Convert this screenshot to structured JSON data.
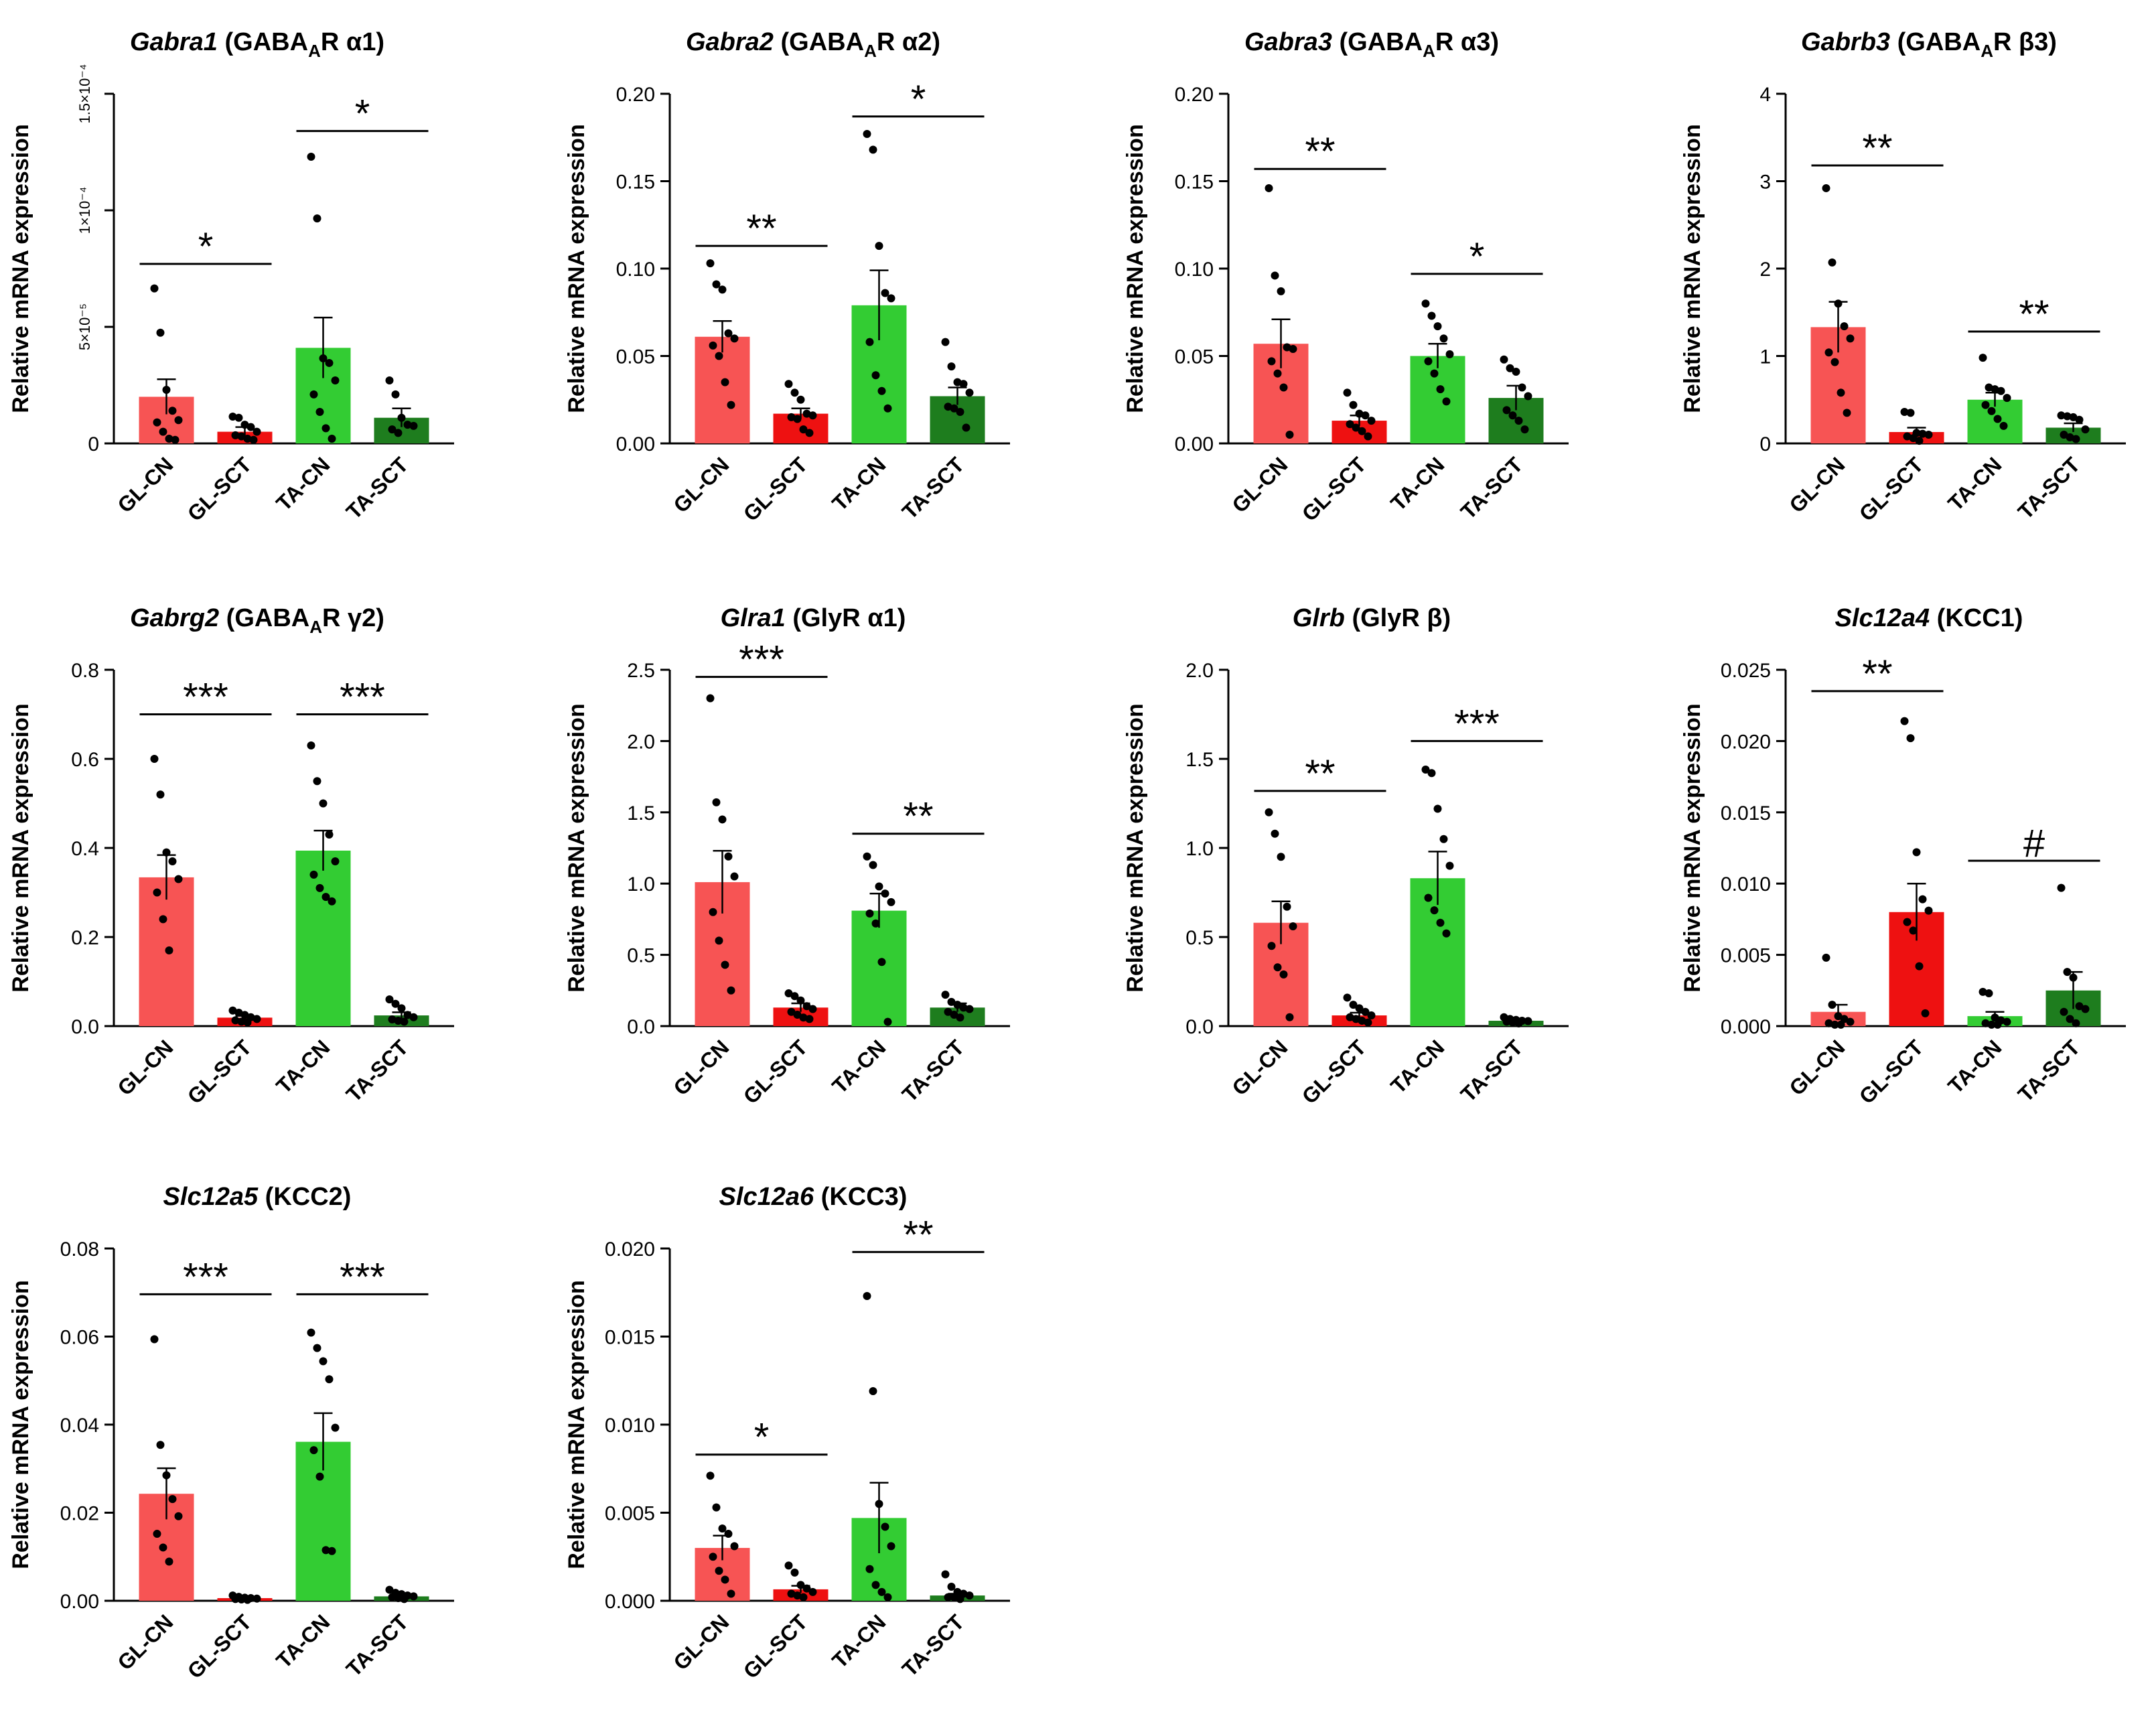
{
  "colors": {
    "gl_cn": "#f75454",
    "gl_sct": "#ee1111",
    "ta_cn": "#33cc33",
    "ta_sct": "#1e7d1e",
    "axis": "#000000",
    "dot": "#000000"
  },
  "chart_data": [
    {
      "type": "bar",
      "title_gene": "Gabra1",
      "title_rest": " (GABA",
      "title_sub": "A",
      "title_tail": "R α1)",
      "ylabel": "Relative mRNA expression",
      "categories": [
        "GL-CN",
        "GL-SCT",
        "TA-CN",
        "TA-SCT"
      ],
      "values": [
        2e-05,
        5e-06,
        4.1e-05,
        1.1e-05
      ],
      "sem": [
        7.5e-06,
        2e-06,
        1.3e-05,
        4e-06
      ],
      "points": [
        [
          6.65e-05,
          4.75e-05,
          2.3e-05,
          1.4e-05,
          1e-05,
          9e-06,
          5e-06,
          2e-06,
          1.5e-06
        ],
        [
          1.15e-05,
          1.1e-05,
          8e-06,
          7e-06,
          5e-06,
          3.5e-06,
          3e-06,
          2e-06,
          1.5e-06
        ],
        [
          0.000123,
          9.65e-05,
          3.65e-05,
          3.45e-05,
          2.7e-05,
          2.1e-05,
          1.35e-05,
          6.5e-06,
          2e-06
        ],
        [
          2.7e-05,
          2.1e-05,
          1.1e-05,
          8e-06,
          7.5e-06,
          6e-06,
          4.5e-06
        ]
      ],
      "yticks": [
        "0",
        "5×10⁻⁵",
        "1×10⁻⁴",
        "1.5×10⁻⁴"
      ],
      "ytick_values": [
        0,
        5e-05,
        0.0001,
        0.00015
      ],
      "ylim": [
        0,
        0.00015
      ],
      "significance": [
        {
          "from": 0,
          "to": 1,
          "label": "*",
          "y": 7.7e-05
        },
        {
          "from": 2,
          "to": 3,
          "label": "*",
          "y": 0.000134
        }
      ]
    },
    {
      "type": "bar",
      "title_gene": "Gabra2",
      "title_rest": " (GABA",
      "title_sub": "A",
      "title_tail": "R α2)",
      "ylabel": "Relative mRNA expression",
      "categories": [
        "GL-CN",
        "GL-SCT",
        "TA-CN",
        "TA-SCT"
      ],
      "values": [
        0.061,
        0.017,
        0.079,
        0.027
      ],
      "sem": [
        0.009,
        0.003,
        0.02,
        0.005
      ],
      "points": [
        [
          0.103,
          0.091,
          0.088,
          0.063,
          0.06,
          0.056,
          0.05,
          0.035,
          0.022
        ],
        [
          0.034,
          0.029,
          0.025,
          0.017,
          0.016,
          0.015,
          0.014,
          0.008,
          0.006
        ],
        [
          0.177,
          0.168,
          0.113,
          0.086,
          0.083,
          0.058,
          0.039,
          0.03,
          0.02
        ],
        [
          0.058,
          0.044,
          0.035,
          0.034,
          0.029,
          0.021,
          0.02,
          0.018,
          0.009
        ]
      ],
      "yticks": [
        "0.00",
        "0.05",
        "0.10",
        "0.15",
        "0.20"
      ],
      "ytick_values": [
        0,
        0.05,
        0.1,
        0.15,
        0.2
      ],
      "ylim": [
        0,
        0.2
      ],
      "significance": [
        {
          "from": 0,
          "to": 1,
          "label": "**",
          "y": 0.113
        },
        {
          "from": 2,
          "to": 3,
          "label": "*",
          "y": 0.187
        }
      ]
    },
    {
      "type": "bar",
      "title_gene": "Gabra3",
      "title_rest": " (GABA",
      "title_sub": "A",
      "title_tail": "R α3)",
      "ylabel": "Relative mRNA expression",
      "categories": [
        "GL-CN",
        "GL-SCT",
        "TA-CN",
        "TA-SCT"
      ],
      "values": [
        0.057,
        0.013,
        0.05,
        0.026
      ],
      "sem": [
        0.014,
        0.003,
        0.007,
        0.007
      ],
      "points": [
        [
          0.146,
          0.096,
          0.087,
          0.055,
          0.054,
          0.047,
          0.04,
          0.032,
          0.005
        ],
        [
          0.029,
          0.022,
          0.017,
          0.016,
          0.013,
          0.011,
          0.009,
          0.007,
          0.004
        ],
        [
          0.08,
          0.073,
          0.067,
          0.06,
          0.051,
          0.047,
          0.04,
          0.031,
          0.024
        ],
        [
          0.048,
          0.043,
          0.041,
          0.032,
          0.027,
          0.019,
          0.016,
          0.013,
          0.008
        ]
      ],
      "yticks": [
        "0.00",
        "0.05",
        "0.10",
        "0.15",
        "0.20"
      ],
      "ytick_values": [
        0,
        0.05,
        0.1,
        0.15,
        0.2
      ],
      "ylim": [
        0,
        0.2
      ],
      "significance": [
        {
          "from": 0,
          "to": 1,
          "label": "**",
          "y": 0.157
        },
        {
          "from": 2,
          "to": 3,
          "label": "*",
          "y": 0.097
        }
      ]
    },
    {
      "type": "bar",
      "title_gene": "Gabrb3",
      "title_rest": " (GABA",
      "title_sub": "A",
      "title_tail": "R β3)",
      "ylabel": "Relative mRNA expression",
      "categories": [
        "GL-CN",
        "GL-SCT",
        "TA-CN",
        "TA-SCT"
      ],
      "values": [
        1.33,
        0.13,
        0.5,
        0.18
      ],
      "sem": [
        0.29,
        0.05,
        0.08,
        0.05
      ],
      "points": [
        [
          2.92,
          2.07,
          1.6,
          1.34,
          1.2,
          1.04,
          0.93,
          0.58,
          0.35
        ],
        [
          0.36,
          0.35,
          0.12,
          0.11,
          0.1,
          0.08,
          0.06,
          0.03
        ],
        [
          0.98,
          0.64,
          0.62,
          0.6,
          0.52,
          0.44,
          0.37,
          0.28,
          0.2
        ],
        [
          0.32,
          0.31,
          0.3,
          0.27,
          0.16,
          0.1,
          0.07,
          0.05
        ]
      ],
      "yticks": [
        "0",
        "1",
        "2",
        "3",
        "4"
      ],
      "ytick_values": [
        0,
        1,
        2,
        3,
        4
      ],
      "ylim": [
        0,
        4
      ],
      "significance": [
        {
          "from": 0,
          "to": 1,
          "label": "**",
          "y": 3.18
        },
        {
          "from": 2,
          "to": 3,
          "label": "**",
          "y": 1.28
        }
      ]
    },
    {
      "type": "bar",
      "title_gene": "Gabrg2",
      "title_rest": " (GABA",
      "title_sub": "A",
      "title_tail": "R γ2)",
      "ylabel": "Relative mRNA expression",
      "categories": [
        "GL-CN",
        "GL-SCT",
        "TA-CN",
        "TA-SCT"
      ],
      "values": [
        0.334,
        0.019,
        0.394,
        0.024
      ],
      "sem": [
        0.05,
        0.004,
        0.045,
        0.007
      ],
      "points": [
        [
          0.6,
          0.52,
          0.39,
          0.37,
          0.33,
          0.3,
          0.24,
          0.17
        ],
        [
          0.035,
          0.03,
          0.025,
          0.02,
          0.016,
          0.013,
          0.01,
          0.008
        ],
        [
          0.63,
          0.55,
          0.5,
          0.43,
          0.37,
          0.34,
          0.31,
          0.29,
          0.28
        ],
        [
          0.06,
          0.05,
          0.04,
          0.025,
          0.02,
          0.015,
          0.012,
          0.01
        ]
      ],
      "yticks": [
        "0.0",
        "0.2",
        "0.4",
        "0.6",
        "0.8"
      ],
      "ytick_values": [
        0,
        0.2,
        0.4,
        0.6,
        0.8
      ],
      "ylim": [
        0,
        0.8
      ],
      "significance": [
        {
          "from": 0,
          "to": 1,
          "label": "***",
          "y": 0.7
        },
        {
          "from": 2,
          "to": 3,
          "label": "***",
          "y": 0.7
        }
      ]
    },
    {
      "type": "bar",
      "title_gene": "Glra1",
      "title_rest": " (GlyR α1)",
      "title_sub": "",
      "title_tail": "",
      "ylabel": "Relative mRNA expression",
      "categories": [
        "GL-CN",
        "GL-SCT",
        "TA-CN",
        "TA-SCT"
      ],
      "values": [
        1.01,
        0.13,
        0.81,
        0.13
      ],
      "sem": [
        0.22,
        0.03,
        0.12,
        0.03
      ],
      "points": [
        [
          2.3,
          1.57,
          1.45,
          1.19,
          1.05,
          0.8,
          0.6,
          0.43,
          0.25
        ],
        [
          0.23,
          0.21,
          0.18,
          0.14,
          0.12,
          0.1,
          0.08,
          0.06,
          0.05
        ],
        [
          1.19,
          1.13,
          0.98,
          0.93,
          0.87,
          0.79,
          0.72,
          0.45,
          0.03
        ],
        [
          0.22,
          0.17,
          0.15,
          0.13,
          0.12,
          0.1,
          0.08,
          0.06
        ]
      ],
      "yticks": [
        "0.0",
        "0.5",
        "1.0",
        "1.5",
        "2.0",
        "2.5"
      ],
      "ytick_values": [
        0,
        0.5,
        1,
        1.5,
        2,
        2.5
      ],
      "ylim": [
        0,
        2.5
      ],
      "significance": [
        {
          "from": 0,
          "to": 1,
          "label": "***",
          "y": 2.45
        },
        {
          "from": 2,
          "to": 3,
          "label": "**",
          "y": 1.35
        }
      ]
    },
    {
      "type": "bar",
      "title_gene": "Glrb",
      "title_rest": " (GlyR  β)",
      "title_sub": "",
      "title_tail": "",
      "ylabel": "Relative mRNA expression",
      "categories": [
        "GL-CN",
        "GL-SCT",
        "TA-CN",
        "TA-SCT"
      ],
      "values": [
        0.58,
        0.06,
        0.83,
        0.03
      ],
      "sem": [
        0.12,
        0.015,
        0.15,
        0.005
      ],
      "points": [
        [
          1.2,
          1.08,
          0.95,
          0.67,
          0.56,
          0.45,
          0.33,
          0.29,
          0.05
        ],
        [
          0.16,
          0.12,
          0.1,
          0.08,
          0.06,
          0.05,
          0.04,
          0.03,
          0.02
        ],
        [
          1.44,
          1.42,
          1.22,
          1.05,
          0.9,
          0.72,
          0.65,
          0.58,
          0.52
        ],
        [
          0.05,
          0.04,
          0.035,
          0.03,
          0.028,
          0.025,
          0.02,
          0.015
        ]
      ],
      "yticks": [
        "0.0",
        "0.5",
        "1.0",
        "1.5",
        "2.0"
      ],
      "ytick_values": [
        0,
        0.5,
        1,
        1.5,
        2
      ],
      "ylim": [
        0,
        2
      ],
      "significance": [
        {
          "from": 0,
          "to": 1,
          "label": "**",
          "y": 1.32
        },
        {
          "from": 2,
          "to": 3,
          "label": "***",
          "y": 1.6
        }
      ]
    },
    {
      "type": "bar",
      "title_gene": "Slc12a4",
      "title_rest": " (KCC1)",
      "title_sub": "",
      "title_tail": "",
      "ylabel": "Relative mRNA expression",
      "categories": [
        "GL-CN",
        "GL-SCT",
        "TA-CN",
        "TA-SCT"
      ],
      "values": [
        0.001,
        0.008,
        0.0007,
        0.0025
      ],
      "sem": [
        0.0005,
        0.002,
        0.0003,
        0.0013
      ],
      "points": [
        [
          0.0048,
          0.0015,
          0.0007,
          0.0005,
          0.0003,
          0.0002,
          0.0001,
          0.0001
        ],
        [
          0.0214,
          0.0202,
          0.0122,
          0.0089,
          0.0081,
          0.0073,
          0.0067,
          0.0042,
          0.0009
        ],
        [
          0.0024,
          0.0023,
          0.0006,
          0.0004,
          0.0003,
          0.0002,
          0.0001,
          0.0001
        ],
        [
          0.0097,
          0.0038,
          0.0034,
          0.0014,
          0.0012,
          0.001,
          0.0005,
          0.0002
        ]
      ],
      "yticks": [
        "0.000",
        "0.005",
        "0.010",
        "0.015",
        "0.020",
        "0.025"
      ],
      "ytick_values": [
        0,
        0.005,
        0.01,
        0.015,
        0.02,
        0.025
      ],
      "ylim": [
        0,
        0.025
      ],
      "significance": [
        {
          "from": 0,
          "to": 1,
          "label": "**",
          "y": 0.0235
        },
        {
          "from": 2,
          "to": 3,
          "label": "#",
          "y": 0.0116
        }
      ]
    },
    {
      "type": "bar",
      "title_gene": "Slc12a5",
      "title_rest": " (KCC2)",
      "title_sub": "",
      "title_tail": "",
      "ylabel": "Relative mRNA expression",
      "categories": [
        "GL-CN",
        "GL-SCT",
        "TA-CN",
        "TA-SCT"
      ],
      "values": [
        0.0243,
        0.0006,
        0.0361,
        0.001
      ],
      "sem": [
        0.0058,
        0.0002,
        0.0065,
        0.0003
      ],
      "points": [
        [
          0.0594,
          0.0354,
          0.0285,
          0.0231,
          0.0192,
          0.0152,
          0.0121,
          0.0089
        ],
        [
          0.0012,
          0.0009,
          0.0007,
          0.0006,
          0.0005,
          0.0004,
          0.0003,
          0.0002
        ],
        [
          0.0609,
          0.0574,
          0.0544,
          0.0503,
          0.0393,
          0.0342,
          0.0282,
          0.0115,
          0.0113
        ],
        [
          0.0025,
          0.0018,
          0.0015,
          0.0012,
          0.001,
          0.0008,
          0.0006,
          0.0004
        ]
      ],
      "yticks": [
        "0.00",
        "0.02",
        "0.04",
        "0.06",
        "0.08"
      ],
      "ytick_values": [
        0,
        0.02,
        0.04,
        0.06,
        0.08
      ],
      "ylim": [
        0,
        0.08
      ],
      "significance": [
        {
          "from": 0,
          "to": 1,
          "label": "***",
          "y": 0.0696
        },
        {
          "from": 2,
          "to": 3,
          "label": "***",
          "y": 0.0696
        }
      ]
    },
    {
      "type": "bar",
      "title_gene": "Slc12a6",
      "title_rest": " (KCC3)",
      "title_sub": "",
      "title_tail": "",
      "ylabel": "Relative mRNA expression",
      "categories": [
        "GL-CN",
        "GL-SCT",
        "TA-CN",
        "TA-SCT"
      ],
      "values": [
        0.003,
        0.00065,
        0.0047,
        0.0003
      ],
      "sem": [
        0.0007,
        0.0002,
        0.002,
        0.0001
      ],
      "points": [
        [
          0.0071,
          0.0053,
          0.0041,
          0.0038,
          0.0031,
          0.0025,
          0.0017,
          0.0012,
          0.0004
        ],
        [
          0.002,
          0.0016,
          0.0009,
          0.0007,
          0.0005,
          0.0004,
          0.0003,
          0.0002
        ],
        [
          0.0173,
          0.0119,
          0.0055,
          0.0042,
          0.0031,
          0.0018,
          0.0009,
          0.0005,
          0.0002
        ],
        [
          0.0015,
          0.0008,
          0.0005,
          0.0004,
          0.0003,
          0.0002,
          0.0002,
          0.0001
        ]
      ],
      "yticks": [
        "0.000",
        "0.005",
        "0.010",
        "0.015",
        "0.020"
      ],
      "ytick_values": [
        0,
        0.005,
        0.01,
        0.015,
        0.02
      ],
      "ylim": [
        0,
        0.02
      ],
      "significance": [
        {
          "from": 0,
          "to": 1,
          "label": "*",
          "y": 0.0083
        },
        {
          "from": 2,
          "to": 3,
          "label": "**",
          "y": 0.0198
        }
      ]
    }
  ]
}
